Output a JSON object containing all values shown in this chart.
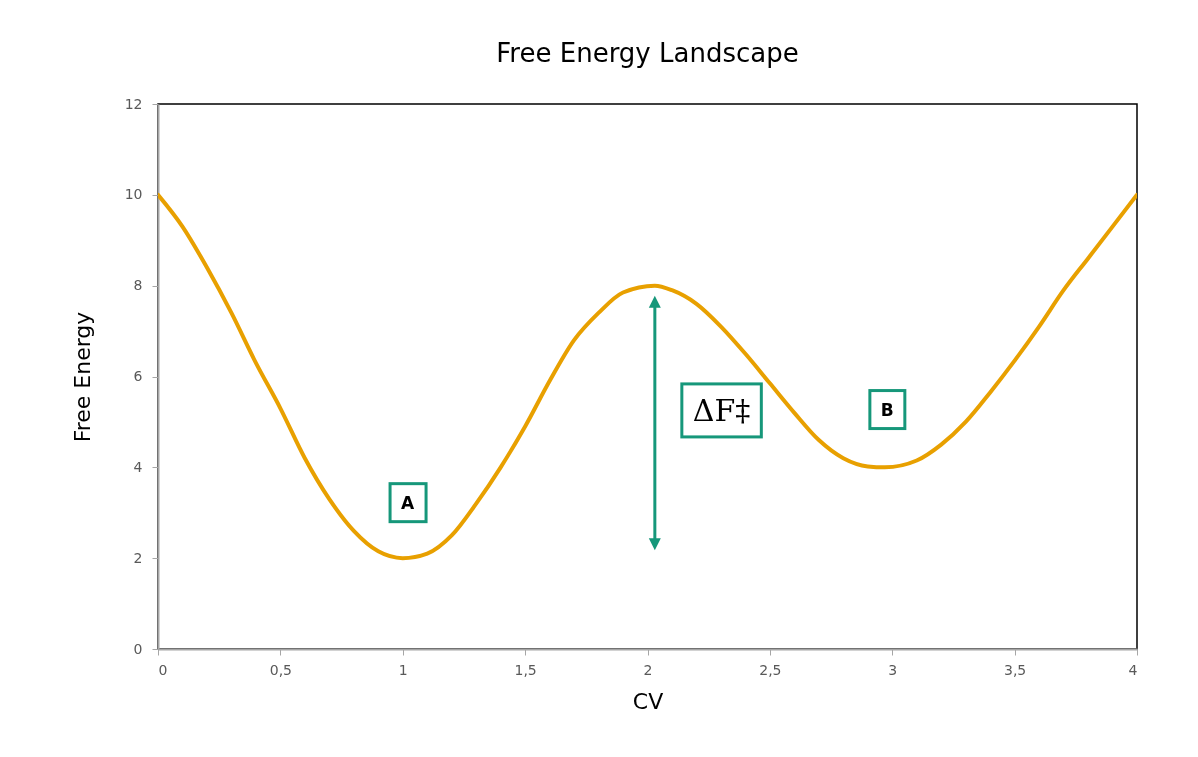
{
  "chart_data": {
    "type": "line",
    "title": "Free Energy Landscape",
    "xlabel": "CV",
    "ylabel": "Free Energy",
    "x": [
      0,
      0.1,
      0.2,
      0.3,
      0.4,
      0.5,
      0.6,
      0.7,
      0.8,
      0.9,
      1.0,
      1.1,
      1.2,
      1.3,
      1.4,
      1.5,
      1.6,
      1.7,
      1.8,
      1.9,
      2.03,
      2.1,
      2.2,
      2.3,
      2.4,
      2.5,
      2.6,
      2.7,
      2.8,
      2.9,
      2.97,
      3.1,
      3.2,
      3.3,
      3.4,
      3.5,
      3.6,
      3.7,
      3.8,
      3.9,
      4.0
    ],
    "series": [
      {
        "color": "#e8a000",
        "values": [
          10,
          9.3,
          8.4,
          7.4,
          6.3,
          5.3,
          4.2,
          3.3,
          2.6,
          2.15,
          2.0,
          2.1,
          2.5,
          3.2,
          4.0,
          4.9,
          5.9,
          6.8,
          7.4,
          7.85,
          8.0,
          7.9,
          7.6,
          7.1,
          6.5,
          5.85,
          5.2,
          4.6,
          4.2,
          4.02,
          4.0,
          4.15,
          4.5,
          5.0,
          5.65,
          6.35,
          7.1,
          7.9,
          8.6,
          9.3,
          10
        ]
      }
    ],
    "xlim": [
      0,
      4
    ],
    "xticks": [
      0,
      {
        "value": 0.5,
        "label": "0,5"
      },
      1,
      {
        "value": 1.5,
        "label": "1,5"
      },
      2,
      {
        "value": 2.5,
        "label": "2,5"
      },
      3,
      {
        "value": 3.5,
        "label": "3,5"
      },
      4
    ],
    "ylim": [
      0,
      12
    ],
    "yticks": [
      0,
      2,
      4,
      6,
      8,
      10,
      12
    ],
    "grid": false,
    "legend": false,
    "marker": "none",
    "line_style": "solid",
    "annotations": [
      {
        "text": "A",
        "x": 1.02,
        "y": 3.2
      },
      {
        "text": "B",
        "x": 2.98,
        "y": 5.25
      },
      "ΔF‡"
    ]
  }
}
